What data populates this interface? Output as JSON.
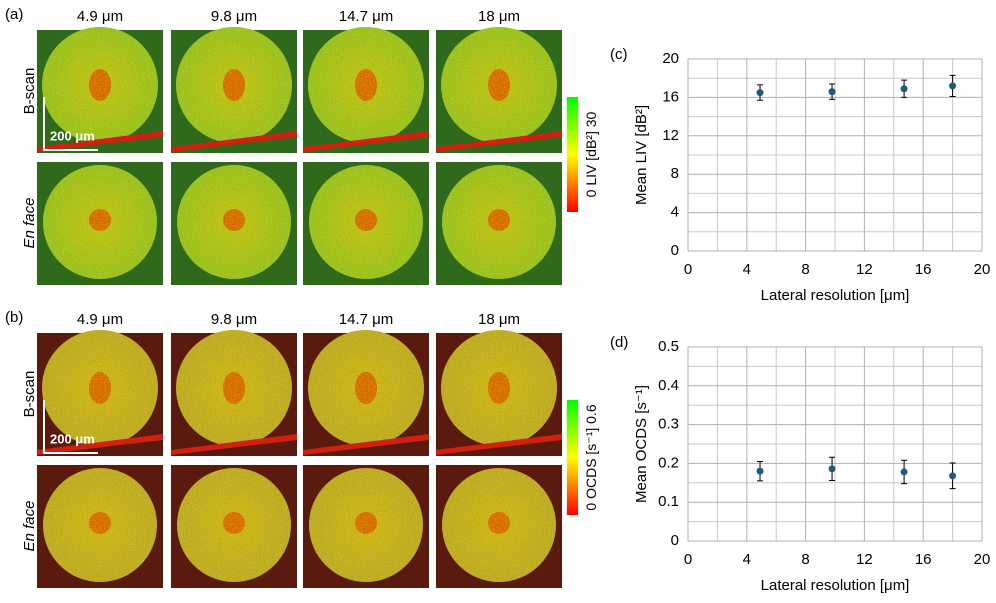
{
  "panels": [
    {
      "label": "(a)",
      "columns": [
        "4.9 μm",
        "9.8 μm",
        "14.7 μm",
        "18 μm"
      ],
      "rows": [
        "B-scan",
        "En face"
      ],
      "scale_bar": "200 μm",
      "colorbar": {
        "min": 0,
        "label": "LIV [dB²]",
        "max": 30
      }
    },
    {
      "label": "(b)",
      "columns": [
        "4.9 μm",
        "9.8 μm",
        "14.7 μm",
        "18 μm"
      ],
      "rows": [
        "B-scan",
        "En face"
      ],
      "scale_bar": "200 μm",
      "colorbar": {
        "min": 0,
        "label": "OCDS [s⁻¹]",
        "max": 0.6
      }
    }
  ],
  "chart_data": [
    {
      "type": "scatter",
      "panel_label": "(c)",
      "xlabel": "Lateral resolution [μm]",
      "ylabel": "Mean LIV [dB²]",
      "x": [
        4.9,
        9.8,
        14.7,
        18
      ],
      "values": [
        16.5,
        16.6,
        16.9,
        17.2
      ],
      "errors": [
        0.8,
        0.8,
        0.9,
        1.1
      ],
      "color": "#1f5a78",
      "xlim": [
        0,
        20
      ],
      "xticks": [
        0,
        4,
        8,
        12,
        16,
        20
      ],
      "ylim": [
        0,
        20
      ],
      "yticks": [
        0,
        4,
        8,
        12,
        16,
        20
      ],
      "grid": "major+minor"
    },
    {
      "type": "scatter",
      "panel_label": "(d)",
      "xlabel": "Lateral resolution [μm]",
      "ylabel": "Mean OCDS [s⁻¹]",
      "x": [
        4.9,
        9.8,
        14.7,
        18
      ],
      "values": [
        0.18,
        0.186,
        0.178,
        0.168
      ],
      "errors": [
        0.025,
        0.03,
        0.03,
        0.033
      ],
      "color": "#1f5a78",
      "xlim": [
        0,
        20
      ],
      "xticks": [
        0,
        4,
        8,
        12,
        16,
        20
      ],
      "ylim": [
        0,
        0.5
      ],
      "yticks": [
        0,
        0.1,
        0.2,
        0.3,
        0.4,
        0.5
      ],
      "grid": "major+minor"
    }
  ]
}
